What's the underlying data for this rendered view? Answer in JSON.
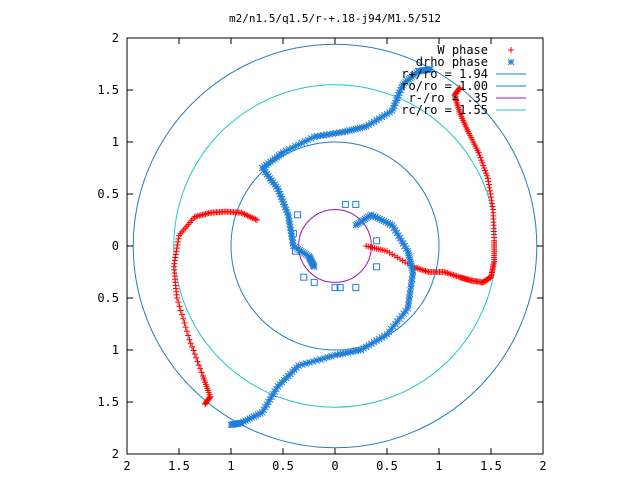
{
  "chart_data": {
    "type": "scatter",
    "title": "m2/n1.5/q1.5/r-+.18-j94/M1.5/512",
    "xlabel": "",
    "ylabel": "",
    "xlim": [
      -2,
      2
    ],
    "ylim": [
      -2,
      2
    ],
    "x_ticks": [
      "2",
      "1.5",
      "1",
      "0.5",
      "0",
      "0.5",
      "1",
      "1.5",
      "2"
    ],
    "y_ticks": [
      "2",
      "1.5",
      "1",
      "0.5",
      "0",
      "0.5",
      "1",
      "1.5",
      "2"
    ],
    "grid": false,
    "legend_position": "top-right",
    "colors": {
      "w_phase": "#ff0000",
      "drho_phase": "#1f7fd6",
      "r_plus": "#1f7fbf",
      "ro": "#1f7fbf",
      "r_minus": "#a010c0",
      "rc": "#20c8c8",
      "axes": "#000000"
    },
    "legend": [
      {
        "key": "w_phase",
        "label": "W phase",
        "marker": "+"
      },
      {
        "key": "drho_phase",
        "label": "drho phase",
        "marker": "*"
      },
      {
        "key": "r_plus",
        "label": "r+/ro = 1.94",
        "marker": "line"
      },
      {
        "key": "ro",
        "label": "ro/ro = 1.00",
        "marker": "line"
      },
      {
        "key": "r_minus",
        "label": "r-/ro = .35",
        "marker": "line"
      },
      {
        "key": "rc",
        "label": "rc/ro = 1.55",
        "marker": "line"
      }
    ],
    "circles": [
      {
        "key": "r_plus",
        "radius": 1.94
      },
      {
        "key": "ro",
        "radius": 1.0
      },
      {
        "key": "r_minus",
        "radius": 0.35
      },
      {
        "key": "rc",
        "radius": 1.55
      }
    ],
    "series": [
      {
        "name": "W phase",
        "key": "w_phase",
        "arms": [
          {
            "start_angle_deg": -5,
            "points": [
              [
                0.3,
                0.0
              ],
              [
                0.5,
                -0.05
              ],
              [
                0.75,
                -0.2
              ],
              [
                0.9,
                -0.25
              ],
              [
                1.05,
                -0.25
              ],
              [
                1.2,
                -0.3
              ],
              [
                1.3,
                -0.33
              ],
              [
                1.42,
                -0.35
              ],
              [
                1.5,
                -0.3
              ],
              [
                1.53,
                -0.15
              ],
              [
                1.53,
                0.05
              ],
              [
                1.52,
                0.35
              ],
              [
                1.47,
                0.65
              ],
              [
                1.38,
                0.9
              ],
              [
                1.28,
                1.1
              ],
              [
                1.2,
                1.28
              ],
              [
                1.15,
                1.45
              ],
              [
                1.2,
                1.52
              ]
            ]
          },
          {
            "start_angle_deg": 175,
            "points": [
              [
                -0.75,
                0.25
              ],
              [
                -0.9,
                0.32
              ],
              [
                -1.05,
                0.33
              ],
              [
                -1.2,
                0.32
              ],
              [
                -1.35,
                0.28
              ],
              [
                -1.5,
                0.1
              ],
              [
                -1.55,
                -0.2
              ],
              [
                -1.52,
                -0.5
              ],
              [
                -1.4,
                -0.9
              ],
              [
                -1.27,
                -1.25
              ],
              [
                -1.2,
                -1.45
              ],
              [
                -1.25,
                -1.52
              ]
            ]
          }
        ]
      },
      {
        "name": "drho phase",
        "key": "drho_phase",
        "arms": [
          {
            "points": [
              [
                -0.2,
                -0.2
              ],
              [
                -0.25,
                -0.1
              ],
              [
                -0.4,
                0.0
              ],
              [
                -0.45,
                0.3
              ],
              [
                -0.55,
                0.55
              ],
              [
                -0.7,
                0.75
              ],
              [
                -0.5,
                0.9
              ],
              [
                -0.2,
                1.05
              ],
              [
                0.1,
                1.1
              ],
              [
                0.3,
                1.15
              ],
              [
                0.55,
                1.3
              ],
              [
                0.65,
                1.55
              ],
              [
                0.8,
                1.68
              ],
              [
                0.92,
                1.7
              ]
            ]
          },
          {
            "points": [
              [
                0.2,
                0.2
              ],
              [
                0.35,
                0.3
              ],
              [
                0.55,
                0.2
              ],
              [
                0.7,
                -0.05
              ],
              [
                0.75,
                -0.25
              ],
              [
                0.7,
                -0.6
              ],
              [
                0.5,
                -0.85
              ],
              [
                0.25,
                -1.0
              ],
              [
                0.0,
                -1.05
              ],
              [
                -0.35,
                -1.15
              ],
              [
                -0.55,
                -1.35
              ],
              [
                -0.7,
                -1.6
              ],
              [
                -0.9,
                -1.7
              ],
              [
                -1.0,
                -1.72
              ]
            ]
          }
        ],
        "inner_points": [
          [
            -0.4,
            0.12
          ],
          [
            -0.38,
            -0.05
          ],
          [
            -0.36,
            0.3
          ],
          [
            0.1,
            0.4
          ],
          [
            0.2,
            0.4
          ],
          [
            0.4,
            0.05
          ],
          [
            0.4,
            -0.2
          ],
          [
            0.2,
            -0.4
          ],
          [
            0.0,
            -0.4
          ],
          [
            -0.2,
            -0.35
          ],
          [
            -0.3,
            -0.3
          ],
          [
            0.05,
            -0.4
          ]
        ]
      }
    ]
  }
}
